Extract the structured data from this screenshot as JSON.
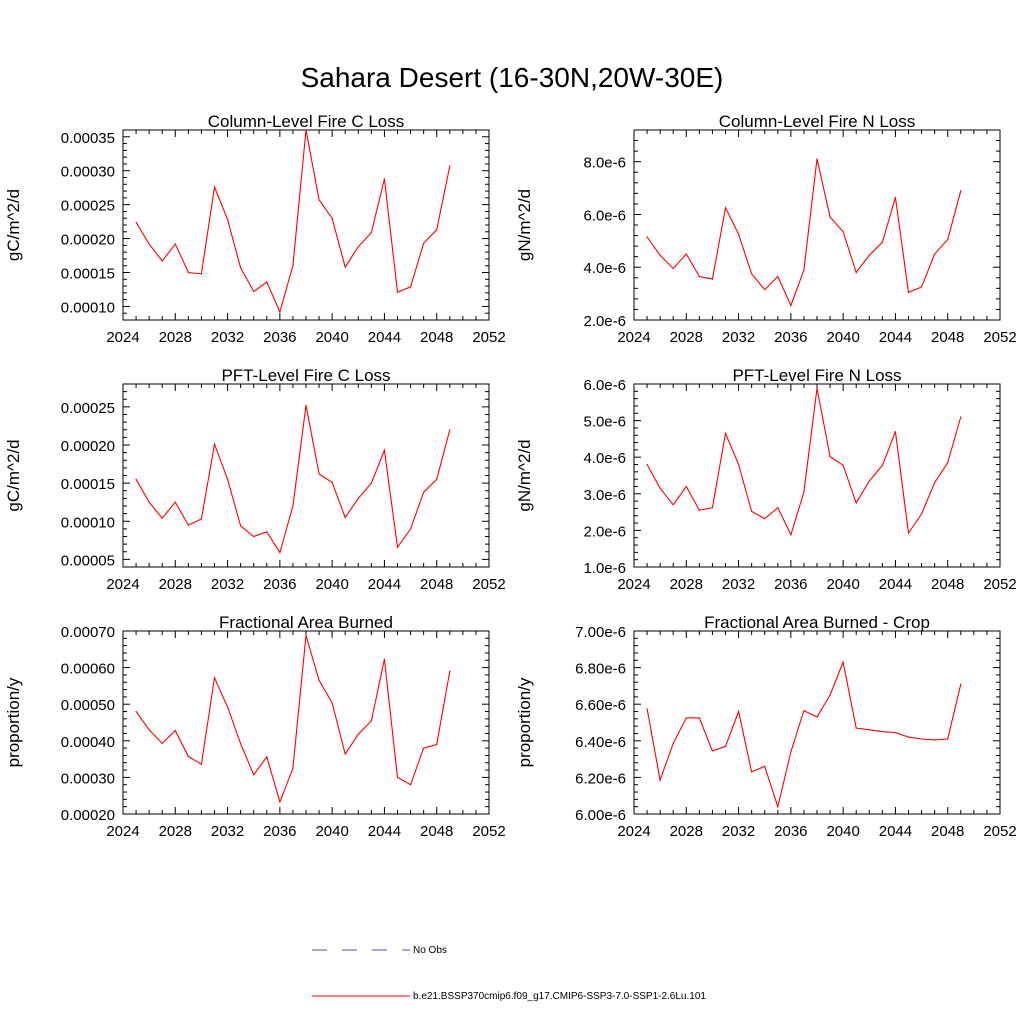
{
  "figure": {
    "title": "Sahara Desert (16-30N,20W-30E)"
  },
  "legend": {
    "obs_label": "No Obs",
    "obs_color": "#5555bb",
    "model_label": "b.e21.BSSP370cmip6.f09_g17.CMIP6-SSP3-7.0-SSP1-2.6Lu.101",
    "model_color": "#ff0000"
  },
  "chart_data": [
    {
      "type": "line",
      "title": "Column-Level Fire C Loss",
      "ylabel": "gC/m^2/d",
      "xlim": [
        2024,
        2052
      ],
      "xticks": [
        "2024",
        "2028",
        "2032",
        "2036",
        "2040",
        "2044",
        "2048",
        "2052"
      ],
      "ylim": [
        8e-05,
        0.00036
      ],
      "yticks": [
        0.0001,
        0.00015,
        0.0002,
        0.00025,
        0.0003,
        0.00035
      ],
      "ytick_labels": [
        "0.00010",
        "0.00015",
        "0.00020",
        "0.00025",
        "0.00030",
        "0.00035"
      ],
      "x": [
        2025,
        2026,
        2027,
        2028,
        2029,
        2030,
        2031,
        2032,
        2033,
        2034,
        2035,
        2036,
        2037,
        2038,
        2039,
        2040,
        2041,
        2042,
        2043,
        2044,
        2045,
        2046,
        2047,
        2048,
        2049
      ],
      "series": [
        {
          "color": "#ff0000",
          "values": [
            0.000224,
            0.000192,
            0.000167,
            0.000192,
            0.00015,
            0.000148,
            0.000276,
            0.000228,
            0.000157,
            0.000122,
            0.000136,
            9.2e-05,
            0.00016,
            0.00036,
            0.000257,
            0.00023,
            0.000158,
            0.000188,
            0.000209,
            0.000288,
            0.000121,
            0.000129,
            0.000193,
            0.000213,
            0.000307
          ]
        }
      ]
    },
    {
      "type": "line",
      "title": "Column-Level Fire N Loss",
      "ylabel": "gN/m^2/d",
      "xlim": [
        2024,
        2052
      ],
      "xticks": [
        "2024",
        "2028",
        "2032",
        "2036",
        "2040",
        "2044",
        "2048",
        "2052"
      ],
      "ylim": [
        2e-06,
        9.2e-06
      ],
      "yticks": [
        2e-06,
        4e-06,
        6e-06,
        8e-06
      ],
      "ytick_labels": [
        "2.0e-6",
        "4.0e-6",
        "6.0e-6",
        "8.0e-6"
      ],
      "x": [
        2025,
        2026,
        2027,
        2028,
        2029,
        2030,
        2031,
        2032,
        2033,
        2034,
        2035,
        2036,
        2037,
        2038,
        2039,
        2040,
        2041,
        2042,
        2043,
        2044,
        2045,
        2046,
        2047,
        2048,
        2049
      ],
      "series": [
        {
          "color": "#ff0000",
          "values": [
            5.15e-06,
            4.45e-06,
            3.95e-06,
            4.5e-06,
            3.65e-06,
            3.55e-06,
            6.25e-06,
            5.25e-06,
            3.75e-06,
            3.15e-06,
            3.65e-06,
            2.55e-06,
            3.9e-06,
            8.1e-06,
            5.9e-06,
            5.35e-06,
            3.8e-06,
            4.45e-06,
            4.95e-06,
            6.65e-06,
            3.05e-06,
            3.25e-06,
            4.5e-06,
            5.05e-06,
            6.9e-06
          ]
        }
      ]
    },
    {
      "type": "line",
      "title": "PFT-Level Fire C Loss",
      "ylabel": "gC/m^2/d",
      "xlim": [
        2024,
        2052
      ],
      "xticks": [
        "2024",
        "2028",
        "2032",
        "2036",
        "2040",
        "2044",
        "2048",
        "2052"
      ],
      "ylim": [
        4e-05,
        0.00028
      ],
      "yticks": [
        5e-05,
        0.0001,
        0.00015,
        0.0002,
        0.00025
      ],
      "ytick_labels": [
        "0.00005",
        "0.00010",
        "0.00015",
        "0.00020",
        "0.00025"
      ],
      "x": [
        2025,
        2026,
        2027,
        2028,
        2029,
        2030,
        2031,
        2032,
        2033,
        2034,
        2035,
        2036,
        2037,
        2038,
        2039,
        2040,
        2041,
        2042,
        2043,
        2044,
        2045,
        2046,
        2047,
        2048,
        2049
      ],
      "series": [
        {
          "color": "#ff0000",
          "values": [
            0.000155,
            0.000125,
            0.000104,
            0.000125,
            9.5e-05,
            0.000103,
            0.000201,
            0.000155,
            9.4e-05,
            8e-05,
            8.6e-05,
            5.9e-05,
            0.00012,
            0.000252,
            0.000162,
            0.000151,
            0.000105,
            0.00013,
            0.00015,
            0.000193,
            6.6e-05,
            9e-05,
            0.000138,
            0.000155,
            0.00022
          ]
        }
      ]
    },
    {
      "type": "line",
      "title": "PFT-Level Fire N Loss",
      "ylabel": "gN/m^2/d",
      "xlim": [
        2024,
        2052
      ],
      "xticks": [
        "2024",
        "2028",
        "2032",
        "2036",
        "2040",
        "2044",
        "2048",
        "2052"
      ],
      "ylim": [
        1e-06,
        6e-06
      ],
      "yticks": [
        1e-06,
        2e-06,
        3e-06,
        4e-06,
        5e-06,
        6e-06
      ],
      "ytick_labels": [
        "1.0e-6",
        "2.0e-6",
        "3.0e-6",
        "4.0e-6",
        "5.0e-6",
        "6.0e-6"
      ],
      "x": [
        2025,
        2026,
        2027,
        2028,
        2029,
        2030,
        2031,
        2032,
        2033,
        2034,
        2035,
        2036,
        2037,
        2038,
        2039,
        2040,
        2041,
        2042,
        2043,
        2044,
        2045,
        2046,
        2047,
        2048,
        2049
      ],
      "series": [
        {
          "color": "#ff0000",
          "values": [
            3.8e-06,
            3.15e-06,
            2.7e-06,
            3.2e-06,
            2.55e-06,
            2.62e-06,
            4.65e-06,
            3.8e-06,
            2.52e-06,
            2.32e-06,
            2.62e-06,
            1.88e-06,
            3.05e-06,
            5.88e-06,
            4.02e-06,
            3.78e-06,
            2.75e-06,
            3.35e-06,
            3.78e-06,
            4.7e-06,
            1.93e-06,
            2.45e-06,
            3.3e-06,
            3.85e-06,
            5.1e-06
          ]
        }
      ]
    },
    {
      "type": "line",
      "title": "Fractional Area Burned",
      "ylabel": "proportion/y",
      "xlim": [
        2024,
        2052
      ],
      "xticks": [
        "2024",
        "2028",
        "2032",
        "2036",
        "2040",
        "2044",
        "2048",
        "2052"
      ],
      "ylim": [
        0.0002,
        0.0007
      ],
      "yticks": [
        0.0002,
        0.0003,
        0.0004,
        0.0005,
        0.0006,
        0.0007
      ],
      "ytick_labels": [
        "0.00020",
        "0.00030",
        "0.00040",
        "0.00050",
        "0.00060",
        "0.00070"
      ],
      "x": [
        2025,
        2026,
        2027,
        2028,
        2029,
        2030,
        2031,
        2032,
        2033,
        2034,
        2035,
        2036,
        2037,
        2038,
        2039,
        2040,
        2041,
        2042,
        2043,
        2044,
        2045,
        2046,
        2047,
        2048,
        2049
      ],
      "series": [
        {
          "color": "#ff0000",
          "values": [
            0.00048,
            0.00043,
            0.000393,
            0.000428,
            0.000357,
            0.000336,
            0.000572,
            0.000492,
            0.000392,
            0.000307,
            0.000356,
            0.000233,
            0.000325,
            0.000688,
            0.000565,
            0.000504,
            0.000364,
            0.000418,
            0.000455,
            0.000623,
            0.0003,
            0.00028,
            0.00038,
            0.00039,
            0.00059
          ]
        }
      ]
    },
    {
      "type": "line",
      "title": "Fractional Area Burned - Crop",
      "ylabel": "proportion/y",
      "xlim": [
        2024,
        2052
      ],
      "xticks": [
        "2024",
        "2028",
        "2032",
        "2036",
        "2040",
        "2044",
        "2048",
        "2052"
      ],
      "ylim": [
        6e-06,
        7e-06
      ],
      "yticks": [
        6e-06,
        6.2e-06,
        6.4e-06,
        6.6e-06,
        6.8e-06,
        7e-06
      ],
      "ytick_labels": [
        "6.00e-6",
        "6.20e-6",
        "6.40e-6",
        "6.60e-6",
        "6.80e-6",
        "7.00e-6"
      ],
      "x": [
        2025,
        2026,
        2027,
        2028,
        2029,
        2030,
        2031,
        2032,
        2033,
        2034,
        2035,
        2036,
        2037,
        2038,
        2039,
        2040,
        2041,
        2042,
        2043,
        2044,
        2045,
        2046,
        2047,
        2048,
        2049
      ],
      "series": [
        {
          "color": "#ff0000",
          "values": [
            6.575e-06,
            6.185e-06,
            6.385e-06,
            6.525e-06,
            6.525e-06,
            6.345e-06,
            6.37e-06,
            6.56e-06,
            6.23e-06,
            6.26e-06,
            6.04e-06,
            6.34e-06,
            6.565e-06,
            6.53e-06,
            6.65e-06,
            6.83e-06,
            6.47e-06,
            6.46e-06,
            6.45e-06,
            6.445e-06,
            6.42e-06,
            6.41e-06,
            6.405e-06,
            6.41e-06,
            6.71e-06
          ]
        }
      ]
    }
  ]
}
